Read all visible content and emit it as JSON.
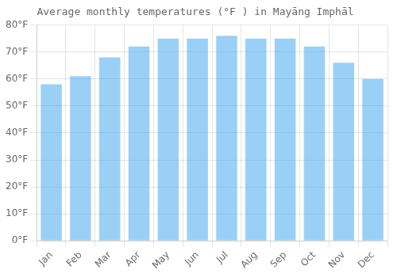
{
  "chart_data": {
    "type": "bar",
    "title": "Average monthly temperatures (°F ) in Mayāng Imphāl",
    "categories": [
      "Jan",
      "Feb",
      "Mar",
      "Apr",
      "May",
      "Jun",
      "Jul",
      "Aug",
      "Sep",
      "Oct",
      "Nov",
      "Dec"
    ],
    "values": [
      58,
      61,
      68,
      72,
      75,
      75,
      76,
      75,
      75,
      72,
      66,
      60
    ],
    "ylim": [
      0,
      80
    ],
    "yticks": [
      {
        "value": 0,
        "label": "0°F"
      },
      {
        "value": 10,
        "label": "10°F"
      },
      {
        "value": 20,
        "label": "20°F"
      },
      {
        "value": 30,
        "label": "30°F"
      },
      {
        "value": 40,
        "label": "40°F"
      },
      {
        "value": 50,
        "label": "50°F"
      },
      {
        "value": 60,
        "label": "60°F"
      },
      {
        "value": 70,
        "label": "70°F"
      },
      {
        "value": 80,
        "label": "80°F"
      }
    ],
    "grid": true
  }
}
